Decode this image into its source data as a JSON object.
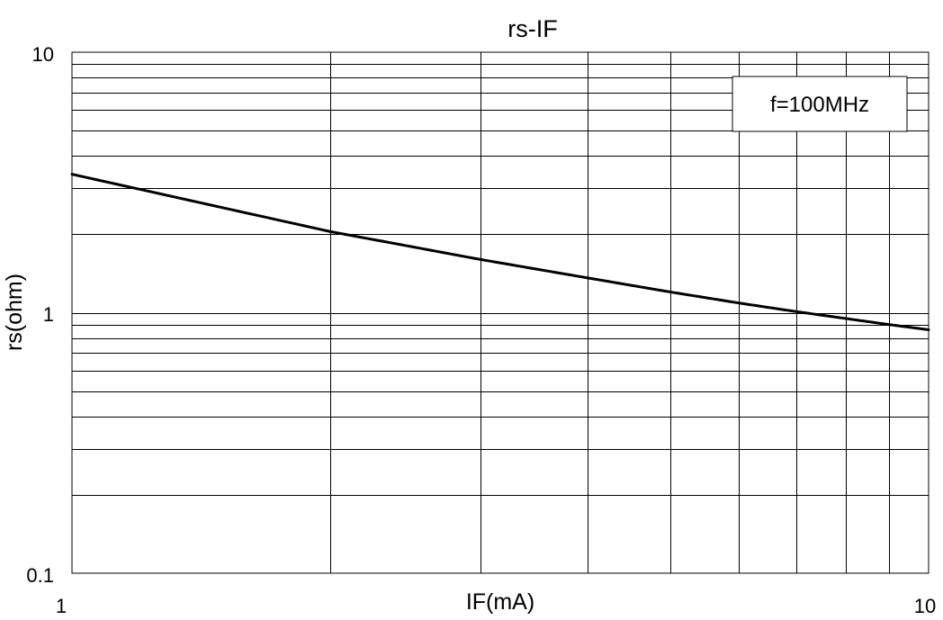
{
  "chart_data": {
    "type": "line",
    "title": "rs-IF",
    "xlabel": "IF(mA)",
    "ylabel": "rs(ohm)",
    "x_scale": "log",
    "y_scale": "log",
    "xlim": [
      1,
      10
    ],
    "ylim": [
      0.1,
      10
    ],
    "grid": true,
    "x_tick_labels": [
      "1",
      "10"
    ],
    "y_tick_labels": [
      "10",
      "1",
      "0.1"
    ],
    "annotation": "f=100MHz",
    "annotation_placement": "top-right",
    "line_color": "#000000",
    "series": [
      {
        "x": [
          1,
          2,
          3,
          4,
          5,
          6,
          7,
          8,
          9,
          10
        ],
        "y": [
          3.4,
          2.05,
          1.6,
          1.36,
          1.2,
          1.09,
          1.01,
          0.95,
          0.9,
          0.86
        ]
      }
    ]
  }
}
